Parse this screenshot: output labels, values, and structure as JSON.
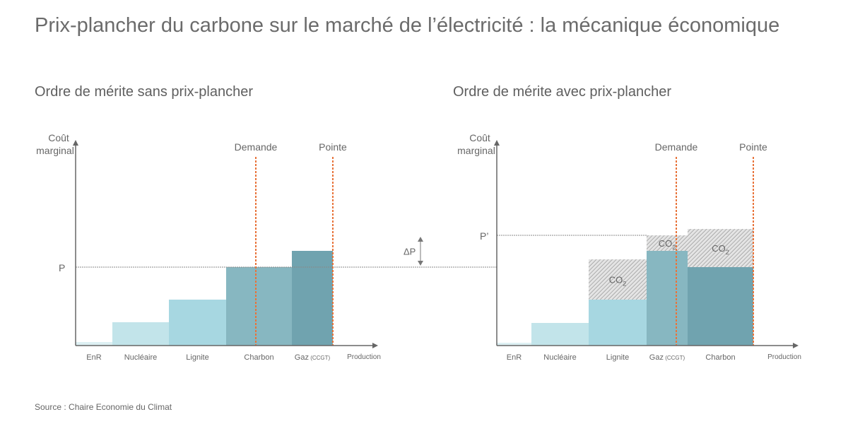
{
  "title": "Prix-plancher du carbone sur le marché de l’électricité : la mécanique économique",
  "source": "Source : Chaire Economie du Climat",
  "colors": {
    "enr": "#ddf0f3",
    "nucleaire": "#c2e4ea",
    "lignite": "#a7d7e1",
    "mid": "#87b7c1",
    "dark": "#70a3af",
    "orange": "#e8733a",
    "axis": "#666666",
    "hatch": "#8a8a8a"
  },
  "chart_data": [
    {
      "type": "bar",
      "title": "Ordre de mérite sans prix-plancher",
      "ylabel": [
        "Coût",
        "marginal"
      ],
      "xlabel": "Production",
      "bars": [
        {
          "label": "EnR",
          "label_small": "",
          "width": 52,
          "cost": 5,
          "co2": 0,
          "color": "enr"
        },
        {
          "label": "Nucléaire",
          "label_small": "",
          "width": 80,
          "cost": 33,
          "co2": 0,
          "color": "nucleaire"
        },
        {
          "label": "Lignite",
          "label_small": "",
          "width": 81,
          "cost": 65,
          "co2": 0,
          "color": "lignite"
        },
        {
          "label": "Charbon",
          "label_small": "",
          "width": 93,
          "cost": 111,
          "co2": 0,
          "color": "mid"
        },
        {
          "label": "Gaz",
          "label_small": "(CCGT)",
          "width": 58,
          "cost": 134,
          "co2": 0,
          "color": "dark"
        }
      ],
      "price_label": "P",
      "price": 111,
      "demand_label": "Demande",
      "demand": 255,
      "peak_label": "Pointe",
      "peak": 364
    },
    {
      "type": "bar",
      "title": "Ordre de mérite avec prix-plancher",
      "ylabel": [
        "Coût",
        "marginal"
      ],
      "xlabel": "Production",
      "bars": [
        {
          "label": "EnR",
          "label_small": "",
          "width": 49,
          "cost": 4,
          "co2": 0,
          "color": "enr"
        },
        {
          "label": "Nucléaire",
          "label_small": "",
          "width": 81,
          "cost": 32,
          "co2": 0,
          "color": "nucleaire"
        },
        {
          "label": "Lignite",
          "label_small": "",
          "width": 82,
          "cost": 65,
          "co2": 57,
          "color": "lignite"
        },
        {
          "label": "Gaz",
          "label_small": "(CCGT)",
          "width": 58,
          "cost": 134,
          "co2": 22,
          "color": "mid"
        },
        {
          "label": "Charbon",
          "label_small": "",
          "width": 93,
          "cost": 111,
          "co2": 54,
          "color": "dark"
        }
      ],
      "co2_label": "CO",
      "co2_sub": "2",
      "price_label": "P’",
      "price": 156,
      "old_price": 111,
      "delta_label": "ΔP",
      "demand_label": "Demande",
      "demand": 254,
      "peak_label": "Pointe",
      "peak": 363
    }
  ]
}
